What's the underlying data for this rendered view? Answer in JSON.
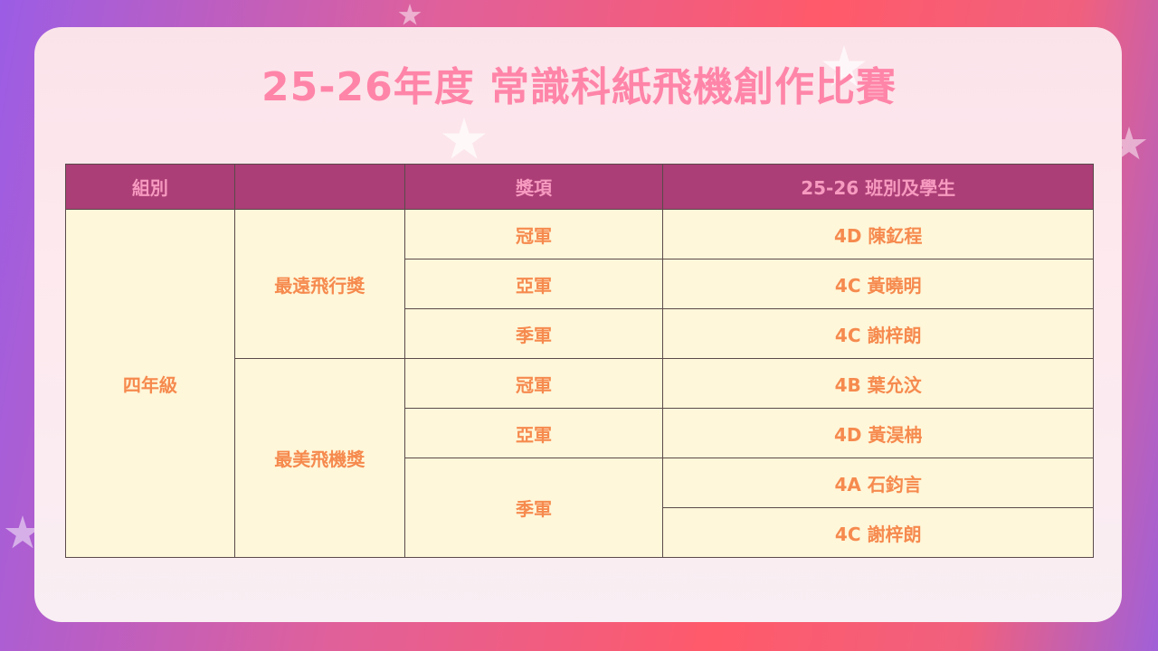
{
  "title": "25-26年度 常識科紙飛機創作比賽",
  "table": {
    "headers": [
      "組別",
      "",
      "獎項",
      "25-26 班別及學生"
    ],
    "group": "四年級",
    "categories": [
      {
        "name": "最遠飛行獎",
        "awards": [
          {
            "award": "冠軍",
            "students": [
              "4D 陳釔程"
            ]
          },
          {
            "award": "亞軍",
            "students": [
              "4C 黃曉明"
            ]
          },
          {
            "award": "季軍",
            "students": [
              "4C 謝梓朗"
            ]
          }
        ]
      },
      {
        "name": "最美飛機獎",
        "awards": [
          {
            "award": "冠軍",
            "students": [
              "4B 葉允汶"
            ]
          },
          {
            "award": "亞軍",
            "students": [
              "4D 黃淏柟"
            ]
          },
          {
            "award": "季軍",
            "students": [
              "4A 石鈞言",
              "4C 謝梓朗"
            ]
          }
        ]
      }
    ]
  },
  "colors": {
    "header_bg": "#ab3e76",
    "header_text": "#f79ac0",
    "cell_bg": "#fef7da",
    "cell_text": "#f68a4e",
    "title": "#ff85a8"
  }
}
